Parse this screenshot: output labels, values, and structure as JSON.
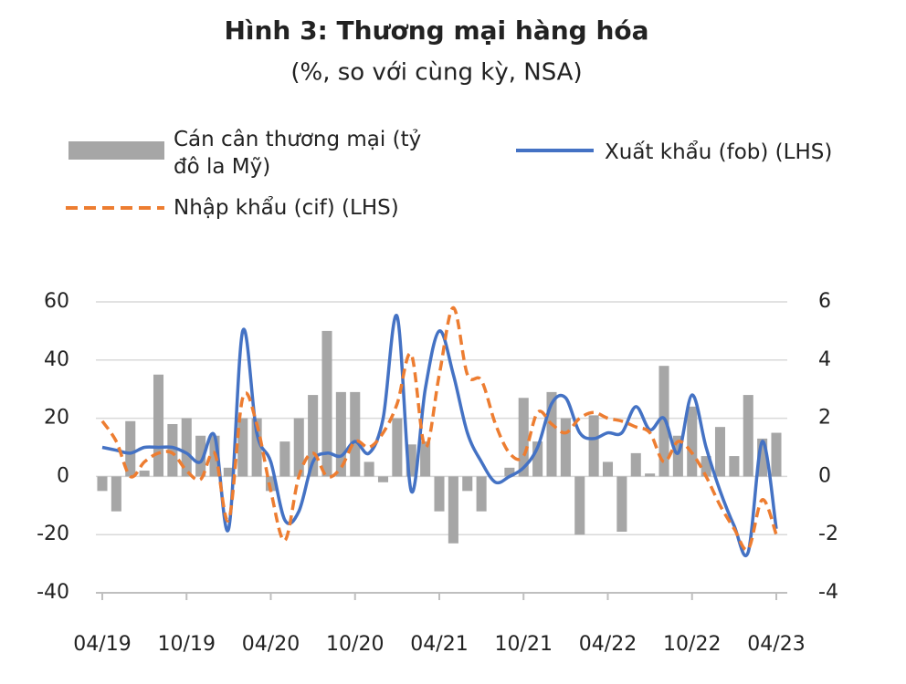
{
  "chart_data": {
    "type": "bar-line",
    "title": "Hình 3: Thương mại hàng hóa",
    "subtitle": "(%, so với cùng kỳ, NSA)",
    "categories": [
      "04/19",
      null,
      null,
      null,
      null,
      null,
      "10/19",
      null,
      null,
      null,
      null,
      null,
      "04/20",
      null,
      null,
      null,
      null,
      null,
      "10/20",
      null,
      null,
      null,
      null,
      null,
      "04/21",
      null,
      null,
      null,
      null,
      null,
      "10/21",
      null,
      null,
      null,
      null,
      null,
      "04/22",
      null,
      null,
      null,
      null,
      null,
      "10/22",
      null,
      null,
      null,
      null,
      null,
      "04/23"
    ],
    "series": [
      {
        "name": "Cán cân thương mại (tỷ đô la Mỹ)",
        "type": "bar",
        "axis": "y2",
        "color": "#a6a6a6",
        "values": [
          -0.5,
          -1.2,
          1.9,
          0.2,
          3.5,
          1.8,
          2.0,
          1.4,
          1.4,
          0.3,
          2.0,
          2.0,
          -0.5,
          1.2,
          2.0,
          2.8,
          5.0,
          2.9,
          2.9,
          0.5,
          -0.2,
          2.0,
          1.1,
          1.2,
          -1.2,
          -2.3,
          -0.5,
          -1.2,
          0,
          0.3,
          2.7,
          1.2,
          2.9,
          2.0,
          -2.0,
          2.1,
          0.5,
          -1.9,
          0.8,
          0.1,
          3.8,
          1.4,
          2.4,
          0.7,
          1.7,
          0.7,
          2.8,
          1.3,
          1.5
        ]
      },
      {
        "name": "Xuất khẩu (fob) (LHS)",
        "type": "line",
        "color": "#4472c4",
        "values": [
          10,
          9,
          8,
          10,
          10,
          10,
          8,
          5,
          14,
          -18,
          50,
          15,
          5,
          -15,
          -12,
          5,
          8,
          7,
          12,
          8,
          20,
          55,
          -5,
          30,
          50,
          35,
          15,
          5,
          -2,
          0,
          3,
          10,
          25,
          27,
          15,
          13,
          15,
          15,
          24,
          16,
          20,
          8,
          28,
          10,
          -5,
          -17,
          -26,
          12,
          -18
        ]
      },
      {
        "name": "Nhập khẩu (cif) (LHS)",
        "type": "line",
        "dashed": true,
        "color": "#ed7d31",
        "values": [
          19,
          12,
          0,
          5,
          8,
          8,
          2,
          -1,
          8,
          -15,
          27,
          18,
          -5,
          -22,
          0,
          8,
          0,
          3,
          12,
          10,
          15,
          25,
          42,
          10,
          35,
          58,
          35,
          33,
          18,
          8,
          7,
          22,
          18,
          15,
          20,
          22,
          20,
          19,
          17,
          15,
          5,
          12,
          8,
          0,
          -10,
          -18,
          -25,
          -8,
          -20
        ]
      }
    ],
    "ylim": [
      -40,
      60
    ],
    "yticks": [
      60,
      40,
      20,
      0,
      -20,
      -40
    ],
    "y2lim": [
      -4,
      6
    ],
    "y2ticks": [
      6,
      4,
      2,
      0,
      -2,
      -4
    ],
    "grid": true
  }
}
